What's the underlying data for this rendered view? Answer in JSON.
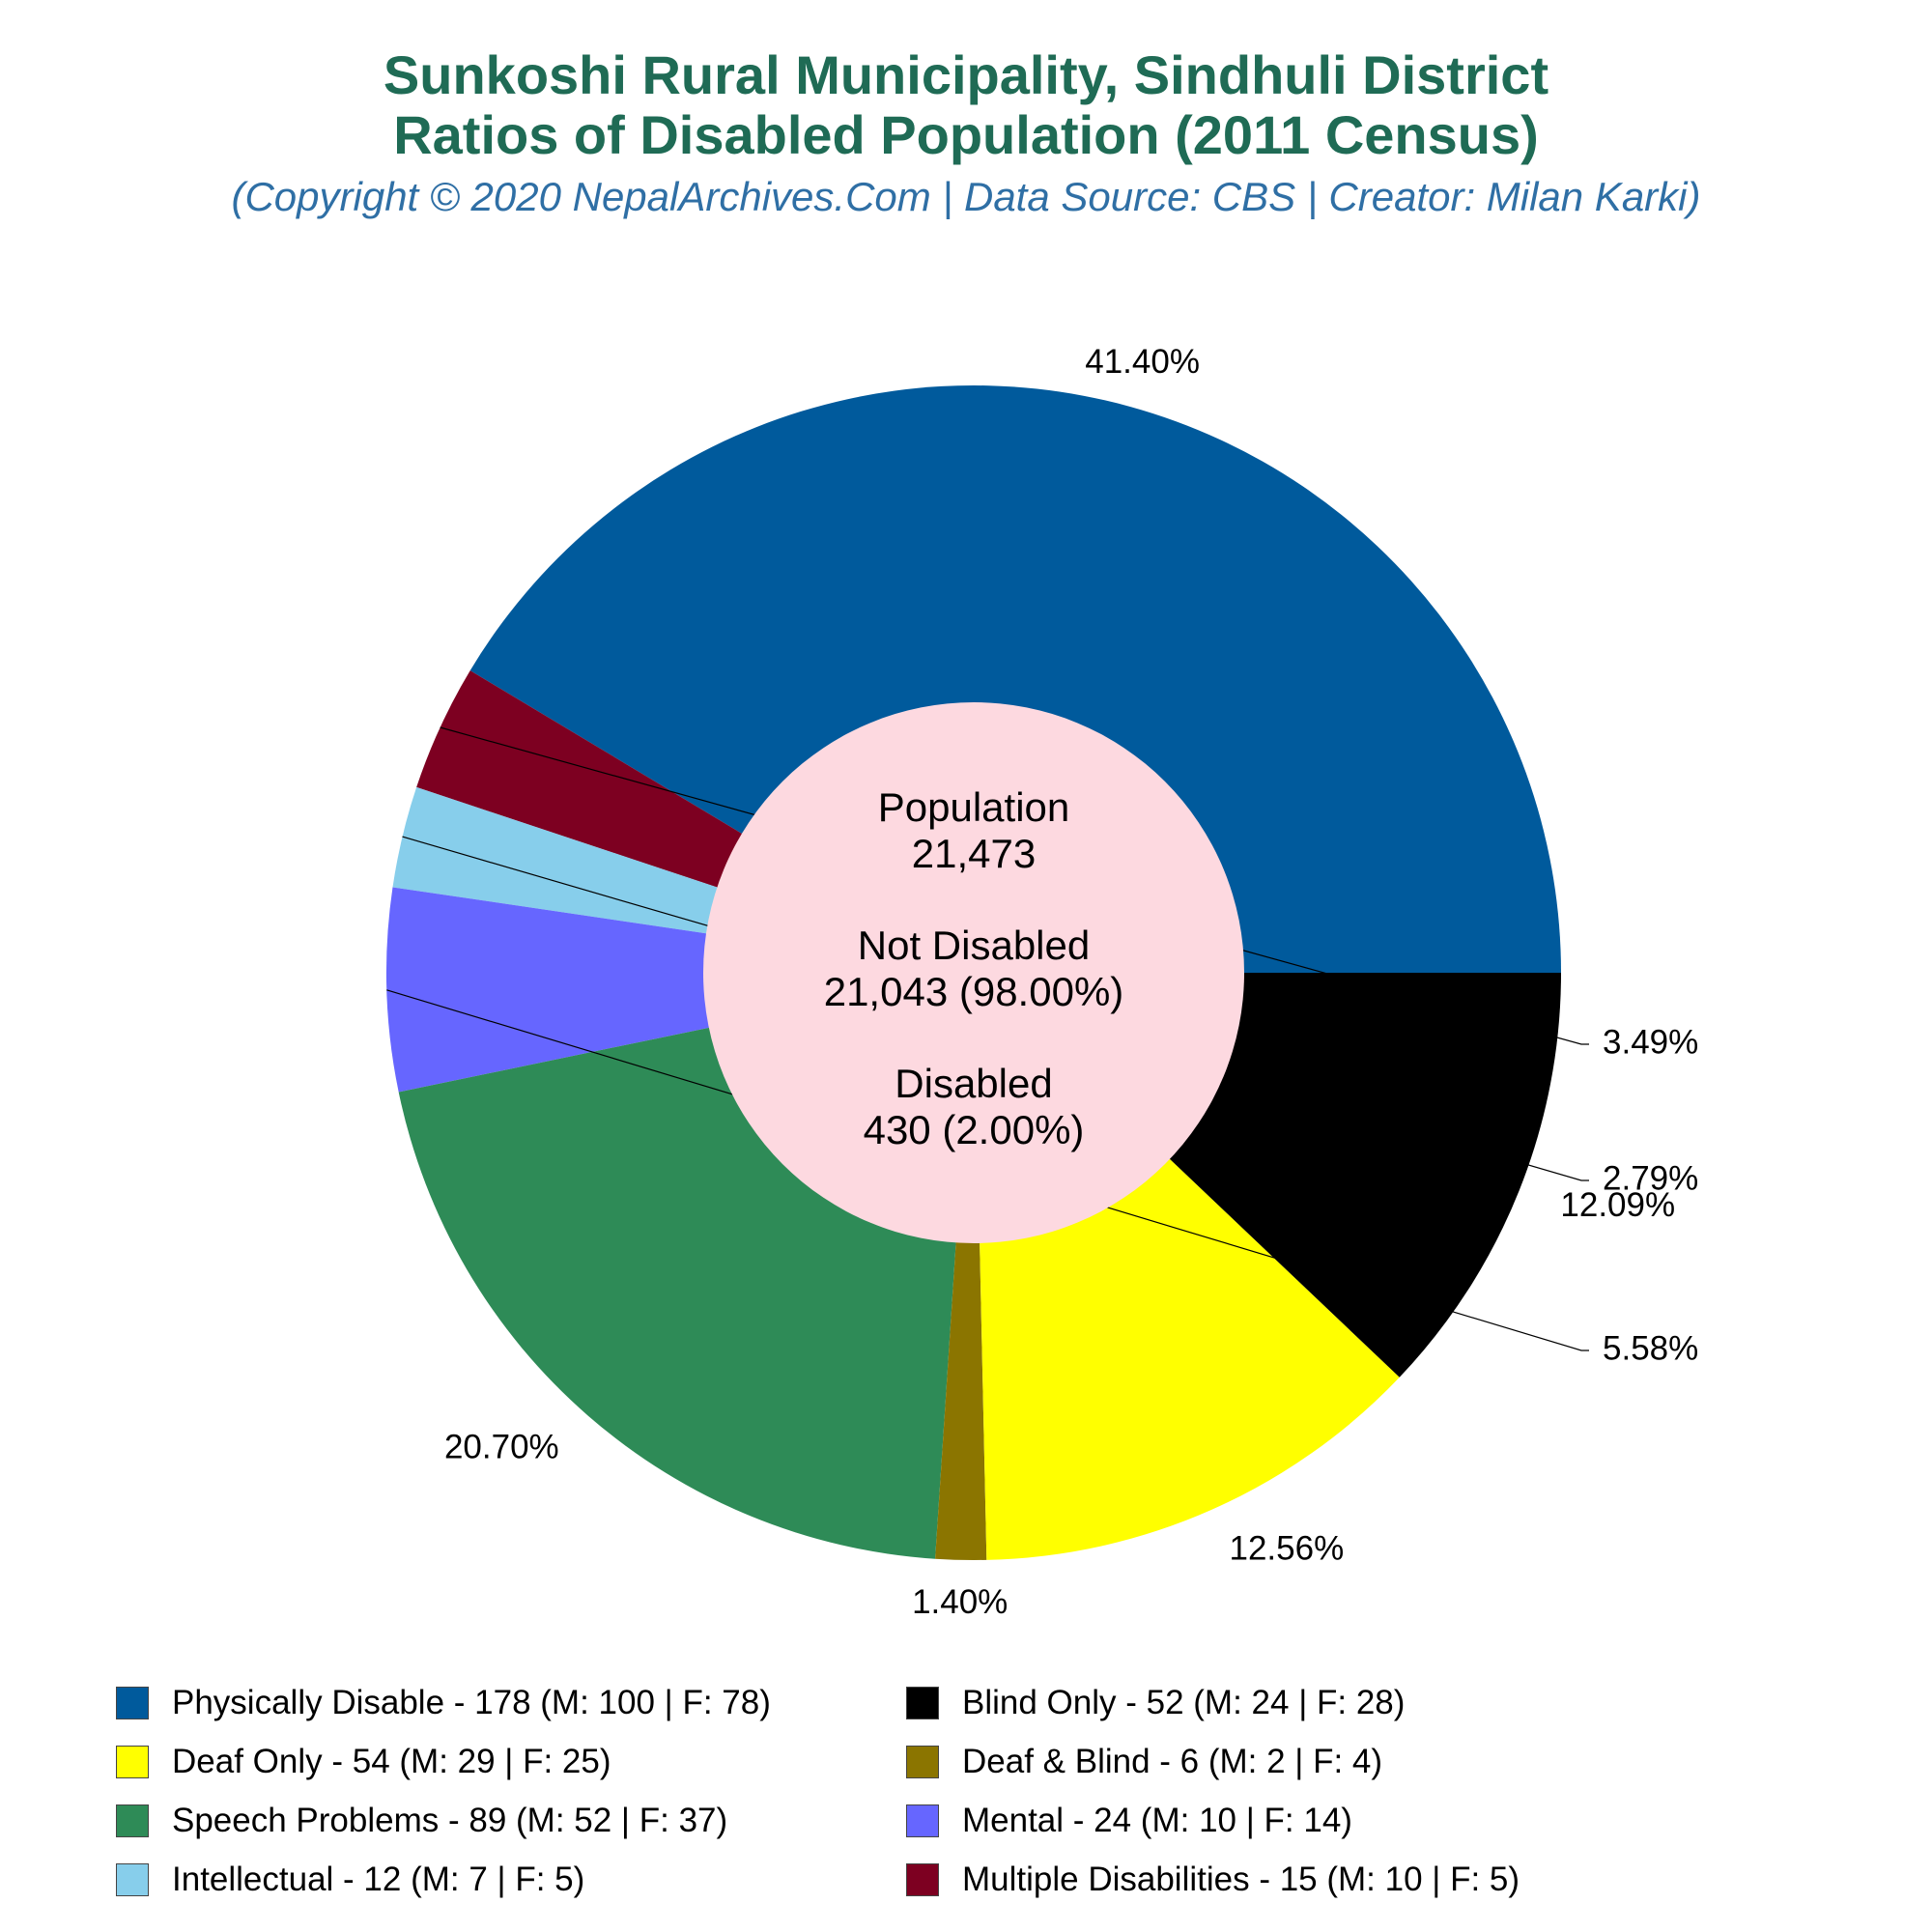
{
  "title_lines": [
    "Sunkoshi Rural Municipality, Sindhuli District",
    "Ratios of Disabled Population (2011 Census)"
  ],
  "subtitle": "(Copyright © 2020 NepalArchives.Com | Data Source: CBS | Creator: Milan Karki)",
  "center": {
    "population_label": "Population",
    "population_value": "21,473",
    "not_disabled_label": "Not Disabled",
    "not_disabled_value": "21,043 (98.00%)",
    "disabled_label": "Disabled",
    "disabled_value": "430 (2.00%)"
  },
  "chart_data": {
    "type": "pie",
    "donut": true,
    "categories": [
      "Physically Disable",
      "Multiple Disabilities",
      "Intellectual",
      "Mental",
      "Speech Problems",
      "Deaf & Blind",
      "Deaf Only",
      "Blind Only"
    ],
    "values": [
      178,
      15,
      12,
      24,
      89,
      6,
      54,
      52
    ],
    "percent_labels": [
      "41.40%",
      "3.49%",
      "2.79%",
      "5.58%",
      "20.70%",
      "1.40%",
      "12.56%",
      "12.09%"
    ],
    "colors": [
      "#005a9c",
      "#7d0021",
      "#87ceeb",
      "#6666ff",
      "#2e8b57",
      "#8b7500",
      "#ffff00",
      "#000000"
    ],
    "center_color": "#fdd9e0",
    "legend_placement": "bottom",
    "legend": [
      {
        "label": "Physically Disable - 178 (M: 100 | F: 78)",
        "color": "#005a9c"
      },
      {
        "label": "Blind Only - 52 (M: 24 | F: 28)",
        "color": "#000000"
      },
      {
        "label": "Deaf Only - 54 (M: 29 | F: 25)",
        "color": "#ffff00"
      },
      {
        "label": "Deaf & Blind - 6 (M: 2 | F: 4)",
        "color": "#8b7500"
      },
      {
        "label": "Speech Problems - 89 (M: 52 | F: 37)",
        "color": "#2e8b57"
      },
      {
        "label": "Mental - 24 (M: 10 | F: 14)",
        "color": "#6666ff"
      },
      {
        "label": "Intellectual - 12 (M: 7 | F: 5)",
        "color": "#87ceeb"
      },
      {
        "label": "Multiple Disabilities - 15 (M: 10 | F: 5)",
        "color": "#7d0021"
      }
    ]
  }
}
